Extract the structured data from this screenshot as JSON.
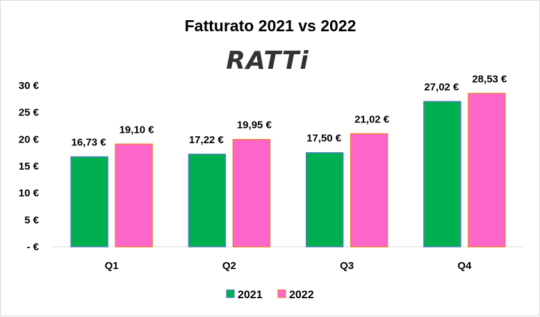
{
  "chart_data": {
    "type": "bar",
    "title": "Fatturato  2021 vs 2022",
    "logo_text": "RATTi",
    "categories": [
      "Q1",
      "Q2",
      "Q3",
      "Q4"
    ],
    "series": [
      {
        "name": "2021",
        "values": [
          16.73,
          17.22,
          17.5,
          27.02
        ],
        "labels": [
          "16,73 €",
          "17,22 €",
          "17,50 €",
          "27,02 €"
        ],
        "color": "#00B050",
        "border": "#4F81BD"
      },
      {
        "name": "2022",
        "values": [
          19.1,
          19.95,
          21.02,
          28.53
        ],
        "labels": [
          "19,10 €",
          "19,95 €",
          "21,02 €",
          "28,53 €"
        ],
        "color": "#FF66CC",
        "border": "#ED7D31"
      }
    ],
    "ylim": [
      0,
      30
    ],
    "yticks": [
      0,
      5,
      10,
      15,
      20,
      25,
      30
    ],
    "ytick_labels": [
      "- €",
      "5 €",
      "10 €",
      "15 €",
      "20 €",
      "25 €",
      "30 €"
    ],
    "grid": false,
    "legend": "bottom"
  }
}
